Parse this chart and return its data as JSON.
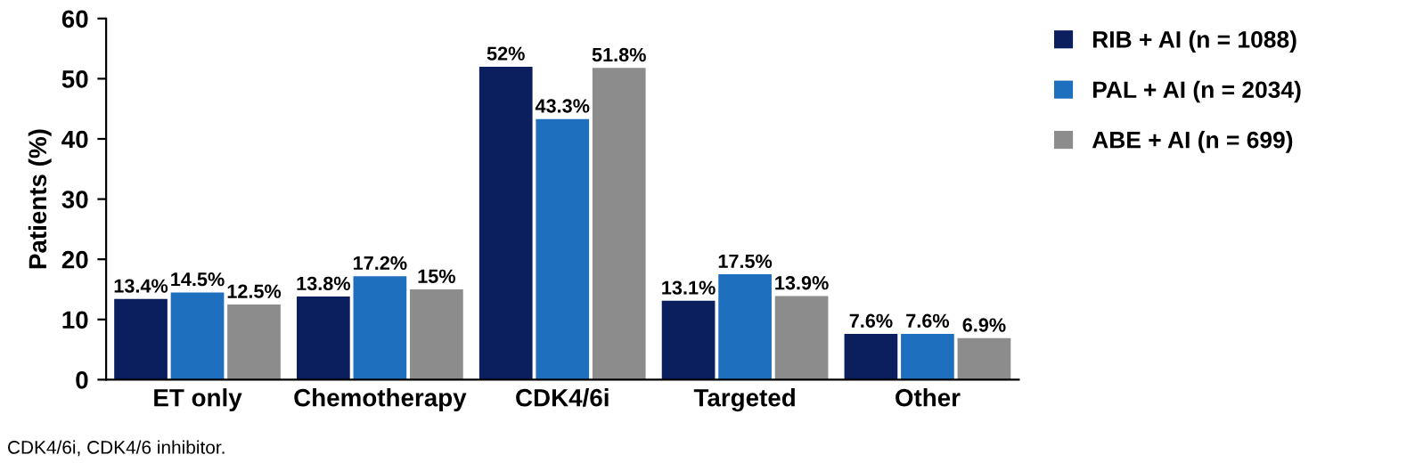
{
  "chart_data": {
    "type": "bar",
    "ylabel": "Patients (%)",
    "categories": [
      "ET only",
      "Chemotherapy",
      "CDK4/6i",
      "Targeted",
      "Other"
    ],
    "series": [
      {
        "name": "RIB + AI (n = 1088)",
        "color": "#0b1f5e",
        "values": [
          13.4,
          13.8,
          52,
          13.1,
          7.6
        ],
        "value_labels": [
          "13.4%",
          "13.8%",
          "52%",
          "13.1%",
          "7.6%"
        ]
      },
      {
        "name": "PAL + AI (n = 2034)",
        "color": "#1f6fbf",
        "values": [
          14.5,
          17.2,
          43.3,
          17.5,
          7.6
        ],
        "value_labels": [
          "14.5%",
          "17.2%",
          "43.3%",
          "17.5%",
          "7.6%"
        ]
      },
      {
        "name": "ABE + AI (n = 699)",
        "color": "#8c8c8c",
        "values": [
          12.5,
          15,
          51.8,
          13.9,
          6.9
        ],
        "value_labels": [
          "12.5%",
          "15%",
          "51.8%",
          "13.9%",
          "6.9%"
        ]
      }
    ],
    "ylim": [
      0,
      60
    ],
    "yticks": [
      0,
      10,
      20,
      30,
      40,
      50,
      60
    ],
    "grid": false,
    "legend": "top right",
    "annotations": [
      "CDK4/6i, CDK4/6 inhibitor."
    ]
  }
}
